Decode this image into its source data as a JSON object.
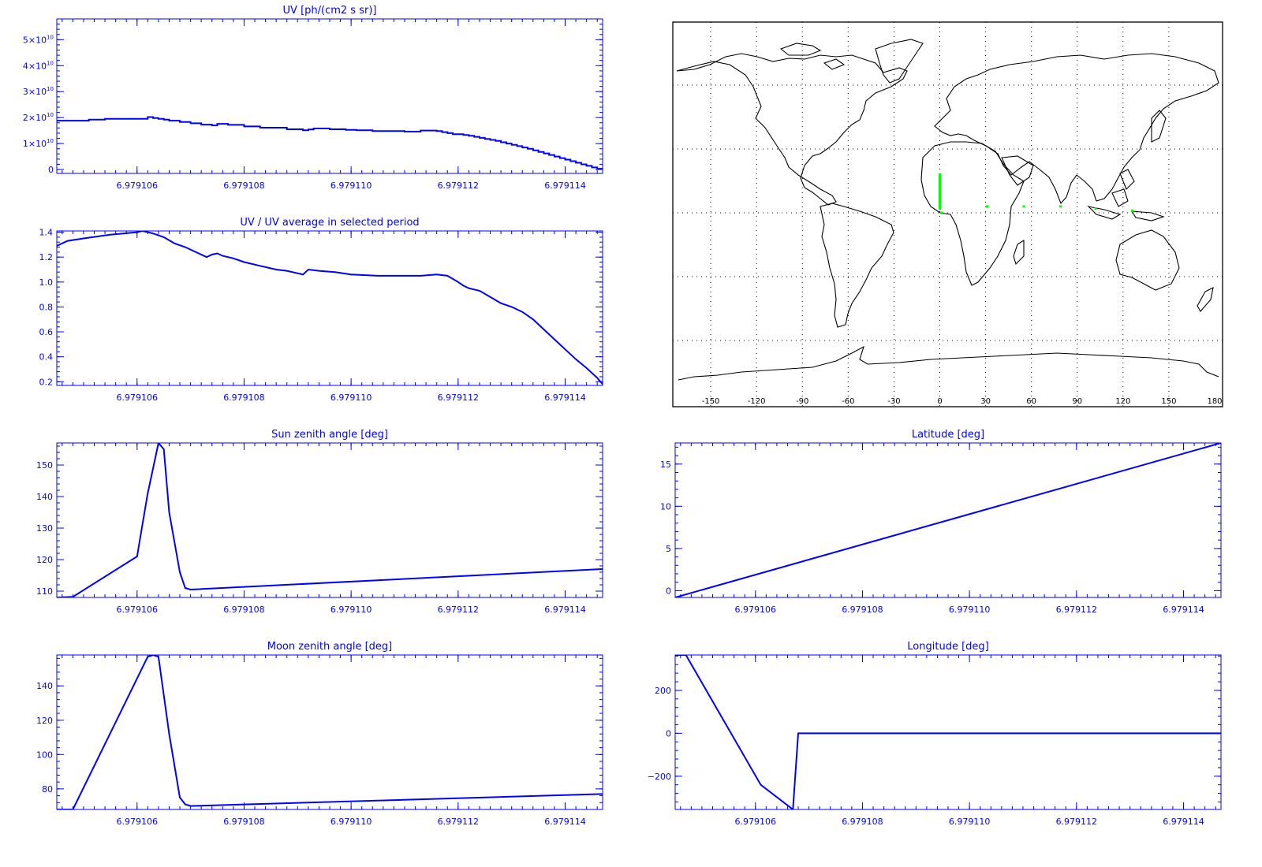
{
  "chart_data": [
    {
      "id": "uv",
      "type": "line",
      "title": "UV [ph/(cm2 s sr)]",
      "xlabel": "",
      "ylabel": "",
      "grid": false,
      "xlim": [
        6.9791045,
        6.9791147
      ],
      "ylim": [
        -1500000000.0,
        58000000000.0
      ],
      "xticks": [
        6.979106,
        6.979108,
        6.97911,
        6.979112,
        6.979114
      ],
      "xtick_labels": [
        "6.979106",
        "6.979108",
        "6.979110",
        "6.979112",
        "6.979114"
      ],
      "yticks": [
        0,
        10000000000.0,
        20000000000.0,
        30000000000.0,
        40000000000.0,
        50000000000.0
      ],
      "ytick_labels": [
        {
          "mant": "0",
          "exp": ""
        },
        {
          "mant": "1×10",
          "exp": "10"
        },
        {
          "mant": "2×10",
          "exp": "10"
        },
        {
          "mant": "3×10",
          "exp": "10"
        },
        {
          "mant": "4×10",
          "exp": "10"
        },
        {
          "mant": "5×10",
          "exp": "10"
        }
      ],
      "series": [
        {
          "color": "#0000ff",
          "step": true,
          "x": [
            6.9791045,
            6.9791051,
            6.9791054,
            6.9791062,
            6.9791063,
            6.9791064,
            6.9791065,
            6.9791066,
            6.9791068,
            6.979107,
            6.9791072,
            6.9791074,
            6.9791075,
            6.9791077,
            6.979108,
            6.9791083,
            6.9791088,
            6.9791091,
            6.9791092,
            6.9791093,
            6.9791096,
            6.9791099,
            6.9791101,
            6.9791104,
            6.979111,
            6.9791113,
            6.9791116,
            6.9791117,
            6.9791118,
            6.9791119,
            6.9791121,
            6.9791122,
            6.9791123,
            6.9791124,
            6.9791125,
            6.9791126,
            6.9791127,
            6.9791128,
            6.9791129,
            6.979113,
            6.9791131,
            6.9791132,
            6.9791133,
            6.9791134,
            6.9791135,
            6.9791136,
            6.9791137,
            6.9791138,
            6.9791139,
            6.979114,
            6.9791141,
            6.9791142,
            6.9791143,
            6.9791144,
            6.9791145,
            6.9791146,
            6.9791147
          ],
          "y": [
            18800000000.0,
            19200000000.0,
            19500000000.0,
            20200000000.0,
            19800000000.0,
            19500000000.0,
            19200000000.0,
            18800000000.0,
            18300000000.0,
            17800000000.0,
            17300000000.0,
            17000000000.0,
            17600000000.0,
            17200000000.0,
            16600000000.0,
            16100000000.0,
            15500000000.0,
            15100000000.0,
            15400000000.0,
            15800000000.0,
            15500000000.0,
            15300000000.0,
            15100000000.0,
            14800000000.0,
            14600000000.0,
            15000000000.0,
            14800000000.0,
            14400000000.0,
            14000000000.0,
            13600000000.0,
            13300000000.0,
            13000000000.0,
            12600000000.0,
            12200000000.0,
            11800000000.0,
            11400000000.0,
            11000000000.0,
            10500000000.0,
            10000000000.0,
            9500000000.0,
            9000000000.0,
            8500000000.0,
            8000000000.0,
            7400000000.0,
            6800000000.0,
            6200000000.0,
            5600000000.0,
            5000000000.0,
            4400000000.0,
            3800000000.0,
            3200000000.0,
            2600000000.0,
            2000000000.0,
            1400000000.0,
            800000000.0,
            300000000.0,
            0.0
          ]
        }
      ]
    },
    {
      "id": "uv-ratio",
      "type": "line",
      "title": "UV / UV average in selected period",
      "xlabel": "",
      "ylabel": "",
      "grid": false,
      "xlim": [
        6.9791045,
        6.9791147
      ],
      "ylim": [
        0.17,
        1.41
      ],
      "xticks": [
        6.979106,
        6.979108,
        6.97911,
        6.979112,
        6.979114
      ],
      "xtick_labels": [
        "6.979106",
        "6.979108",
        "6.979110",
        "6.979112",
        "6.979114"
      ],
      "yticks": [
        0.2,
        0.4,
        0.6,
        0.8,
        1.0,
        1.2,
        1.4
      ],
      "ytick_labels": [
        "0.2",
        "0.4",
        "0.6",
        "0.8",
        "1.0",
        "1.2",
        "1.4"
      ],
      "series": [
        {
          "color": "#0000ff",
          "x": [
            6.9791045,
            6.9791047,
            6.979105,
            6.9791055,
            6.979106,
            6.9791061,
            6.9791063,
            6.9791065,
            6.9791067,
            6.9791069,
            6.9791071,
            6.9791073,
            6.9791074,
            6.9791075,
            6.9791076,
            6.9791078,
            6.979108,
            6.9791083,
            6.9791086,
            6.9791088,
            6.979109,
            6.9791091,
            6.9791092,
            6.9791094,
            6.9791097,
            6.97911,
            6.9791105,
            6.979111,
            6.9791113,
            6.9791116,
            6.9791118,
            6.979112,
            6.9791121,
            6.9791122,
            6.9791124,
            6.9791126,
            6.9791128,
            6.979113,
            6.9791132,
            6.9791134,
            6.9791136,
            6.9791138,
            6.979114,
            6.9791142,
            6.9791144,
            6.9791145,
            6.9791146,
            6.9791147
          ],
          "y": [
            1.29,
            1.33,
            1.35,
            1.38,
            1.4,
            1.41,
            1.39,
            1.36,
            1.31,
            1.28,
            1.24,
            1.2,
            1.22,
            1.23,
            1.21,
            1.19,
            1.16,
            1.13,
            1.1,
            1.09,
            1.07,
            1.06,
            1.1,
            1.09,
            1.08,
            1.06,
            1.05,
            1.05,
            1.05,
            1.06,
            1.05,
            1.0,
            0.97,
            0.95,
            0.93,
            0.88,
            0.83,
            0.8,
            0.76,
            0.7,
            0.62,
            0.54,
            0.46,
            0.38,
            0.31,
            0.27,
            0.23,
            0.18
          ]
        }
      ]
    },
    {
      "id": "sun-zenith",
      "type": "line",
      "title": "Sun zenith angle [deg]",
      "xlabel": "",
      "ylabel": "",
      "grid": false,
      "xlim": [
        6.9791045,
        6.9791147
      ],
      "ylim": [
        108,
        157
      ],
      "xticks": [
        6.979106,
        6.979108,
        6.97911,
        6.979112,
        6.979114
      ],
      "xtick_labels": [
        "6.979106",
        "6.979108",
        "6.979110",
        "6.979112",
        "6.979114"
      ],
      "yticks": [
        110,
        120,
        130,
        140,
        150
      ],
      "ytick_labels": [
        "110",
        "120",
        "130",
        "140",
        "150"
      ],
      "series": [
        {
          "color": "#0000ff",
          "x": [
            6.9791045,
            6.9791048,
            6.979106,
            6.9791061,
            6.9791062,
            6.9791064,
            6.9791065,
            6.9791066,
            6.9791068,
            6.9791069,
            6.979107,
            6.9791147
          ],
          "y": [
            108,
            108.2,
            121,
            131,
            141,
            157,
            155,
            135,
            116,
            111,
            110.5,
            117
          ]
        }
      ]
    },
    {
      "id": "moon-zenith",
      "type": "line",
      "title": "Moon zenith angle [deg]",
      "xlabel": "",
      "ylabel": "",
      "grid": false,
      "xlim": [
        6.9791045,
        6.9791147
      ],
      "ylim": [
        68,
        158
      ],
      "xticks": [
        6.979106,
        6.979108,
        6.97911,
        6.979112,
        6.979114
      ],
      "xtick_labels": [
        "6.979106",
        "6.979108",
        "6.979110",
        "6.979112",
        "6.979114"
      ],
      "yticks": [
        80,
        100,
        120,
        140
      ],
      "ytick_labels": [
        "80",
        "100",
        "120",
        "140"
      ],
      "series": [
        {
          "color": "#0000ff",
          "x": [
            6.9791045,
            6.9791048,
            6.9791062,
            6.9791063,
            6.9791064,
            6.9791066,
            6.9791068,
            6.9791069,
            6.979107,
            6.9791147
          ],
          "y": [
            68,
            68,
            157,
            158,
            157,
            112,
            75,
            71,
            70,
            77
          ]
        }
      ]
    },
    {
      "id": "latitude",
      "type": "line",
      "title": "Latitude [deg]",
      "xlabel": "",
      "ylabel": "",
      "grid": false,
      "xlim": [
        6.9791045,
        6.9791147
      ],
      "ylim": [
        -0.8,
        17.5
      ],
      "xticks": [
        6.979106,
        6.979108,
        6.97911,
        6.979112,
        6.979114
      ],
      "xtick_labels": [
        "6.979106",
        "6.979108",
        "6.979110",
        "6.979112",
        "6.979114"
      ],
      "yticks": [
        0,
        5,
        10,
        15
      ],
      "ytick_labels": [
        "0",
        "5",
        "10",
        "15"
      ],
      "series": [
        {
          "color": "#0000ff",
          "x": [
            6.9791045,
            6.9791147
          ],
          "y": [
            -0.8,
            17.5
          ]
        }
      ]
    },
    {
      "id": "longitude",
      "type": "line",
      "title": "Longitude [deg]",
      "xlabel": "",
      "ylabel": "",
      "grid": false,
      "xlim": [
        6.9791045,
        6.9791147
      ],
      "ylim": [
        -355,
        365
      ],
      "xticks": [
        6.979106,
        6.979108,
        6.97911,
        6.979112,
        6.979114
      ],
      "xtick_labels": [
        "6.979106",
        "6.979108",
        "6.979110",
        "6.979112",
        "6.979114"
      ],
      "yticks": [
        -200,
        0,
        200
      ],
      "ytick_labels": [
        "−200",
        "0",
        "200"
      ],
      "series": [
        {
          "color": "#0000ff",
          "x": [
            6.9791045,
            6.9791047,
            6.9791061,
            6.9791067,
            6.9791068,
            6.9791147
          ],
          "y": [
            365,
            365,
            -240,
            -355,
            0,
            0
          ]
        }
      ]
    },
    {
      "id": "world-map",
      "type": "scatter",
      "title": "",
      "xlim": [
        -180,
        180
      ],
      "ylim": [
        -90,
        90
      ],
      "grid": true,
      "xticks": [
        -150,
        -120,
        -90,
        -60,
        -30,
        0,
        30,
        60,
        90,
        120,
        150,
        180
      ],
      "xtick_labels": [
        "-150",
        "-120",
        "-90",
        "-60",
        "-30",
        "0",
        "30",
        "60",
        "90",
        "120",
        "150",
        "180"
      ],
      "series": [
        {
          "color": "#00ff00",
          "x": [
            0,
            0,
            0,
            0,
            0,
            0,
            0,
            0,
            0,
            0,
            0,
            0,
            0,
            0,
            0,
            0,
            0,
            1,
            31,
            55,
            79,
            102,
            126
          ],
          "y": [
            18,
            17,
            16,
            15,
            14,
            13,
            12,
            11,
            10,
            9,
            8,
            7,
            6,
            5,
            4,
            3,
            2,
            0,
            3,
            3,
            3,
            2,
            1
          ]
        }
      ]
    }
  ]
}
